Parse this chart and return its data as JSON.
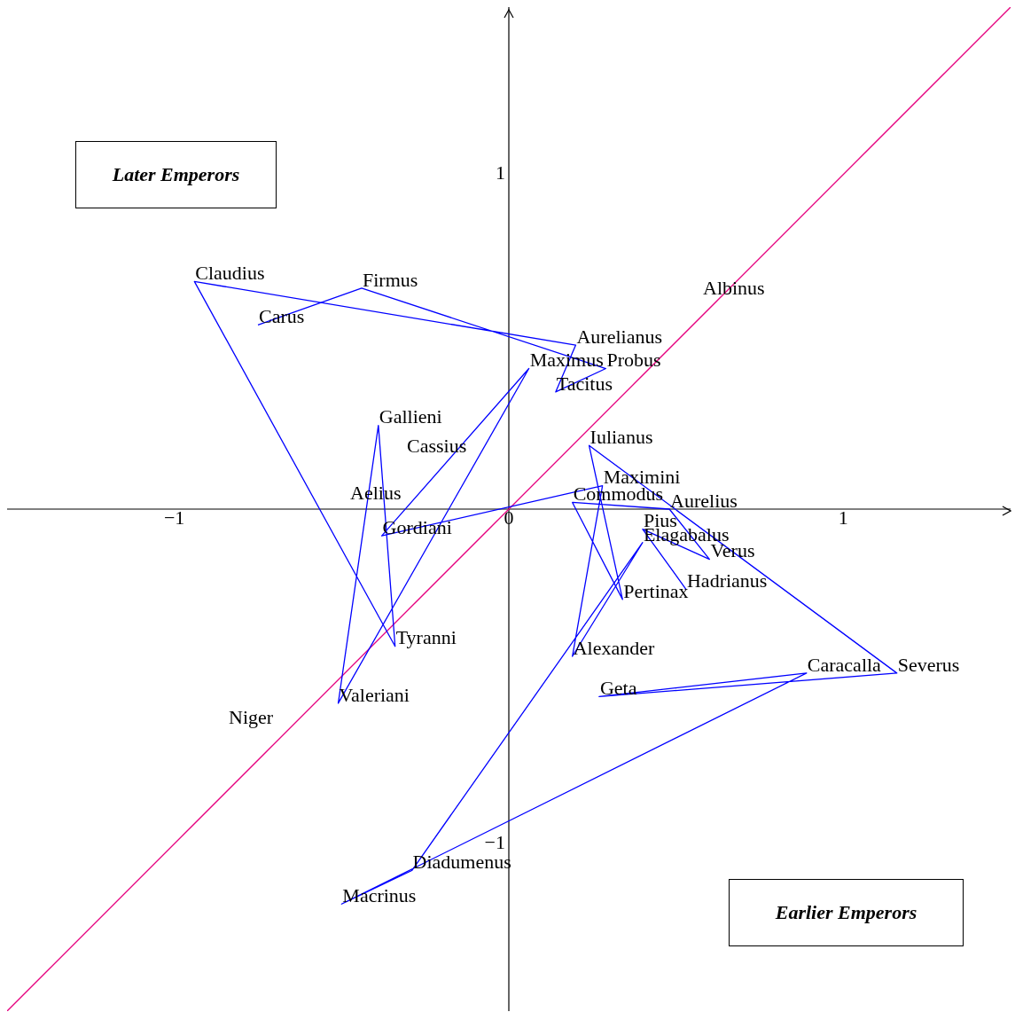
{
  "chart_data": {
    "type": "line",
    "xlim": [
      -1.5,
      1.5
    ],
    "ylim": [
      -1.5,
      1.5
    ],
    "xticks": [
      {
        "value": -1,
        "label": "−1"
      },
      0,
      1
    ],
    "yticks": [
      {
        "value": -1,
        "label": "−1"
      },
      1
    ],
    "grid": false,
    "legend": false,
    "marker": "none",
    "line_style": "solid",
    "series": [
      {
        "type": "line",
        "color": "#0000ff",
        "x": [
          -0.75,
          -0.44,
          0.29,
          0.14,
          0.2,
          -0.94,
          -0.34,
          -0.39,
          -0.51,
          0.06,
          -0.38,
          0.28,
          0.19,
          0.4,
          -0.29,
          -0.5,
          0.89,
          0.27,
          1.16,
          0.24,
          0.34,
          0.19,
          0.48,
          0.6,
          0.4,
          0.53
        ],
        "values": [
          0.55,
          0.66,
          0.42,
          0.35,
          0.49,
          0.68,
          -0.41,
          0.25,
          -0.58,
          0.42,
          -0.08,
          0.07,
          -0.44,
          -0.1,
          -1.08,
          -1.18,
          -0.49,
          -0.56,
          -0.49,
          0.19,
          -0.27,
          0.02,
          0.0,
          -0.15,
          -0.06,
          -0.24
        ]
      },
      {
        "color": "#e6007e",
        "x": [
          -1.5,
          1.5
        ],
        "values": [
          -1.5,
          1.5
        ]
      }
    ],
    "annotations": [
      {
        "text": "Carus",
        "x": -0.75,
        "y": 0.55
      },
      {
        "text": "Firmus",
        "x": -0.44,
        "y": 0.66
      },
      {
        "text": "Probus",
        "x": 0.29,
        "y": 0.42
      },
      {
        "text": "Tacitus",
        "x": 0.14,
        "y": 0.35
      },
      {
        "text": "Aurelianus",
        "x": 0.2,
        "y": 0.49
      },
      {
        "text": "Claudius",
        "x": -0.94,
        "y": 0.68
      },
      {
        "text": "Tyranni",
        "x": -0.34,
        "y": -0.41
      },
      {
        "text": "Gallieni",
        "x": -0.39,
        "y": 0.25
      },
      {
        "text": "Valeriani",
        "x": -0.51,
        "y": -0.58
      },
      {
        "text": "Maximus",
        "x": 0.06,
        "y": 0.42
      },
      {
        "text": "Gordiani",
        "x": -0.38,
        "y": -0.08
      },
      {
        "text": "Maximini",
        "x": 0.28,
        "y": 0.07
      },
      {
        "text": "Alexander",
        "x": 0.19,
        "y": -0.44
      },
      {
        "text": "Elagabalus",
        "x": 0.4,
        "y": -0.1
      },
      {
        "text": "Diadumenus",
        "x": -0.29,
        "y": -1.08
      },
      {
        "text": "Macrinus",
        "x": -0.5,
        "y": -1.18
      },
      {
        "text": "Caracalla",
        "x": 0.89,
        "y": -0.49
      },
      {
        "text": "Geta",
        "x": 0.27,
        "y": -0.56
      },
      {
        "text": "Severus",
        "x": 1.16,
        "y": -0.49
      },
      {
        "text": "Iulianus",
        "x": 0.24,
        "y": 0.19
      },
      {
        "text": "Pertinax",
        "x": 0.34,
        "y": -0.27
      },
      {
        "text": "Commodus",
        "x": 0.19,
        "y": 0.02
      },
      {
        "text": "Aurelius",
        "x": 0.48,
        "y": 0.0
      },
      {
        "text": "Verus",
        "x": 0.6,
        "y": -0.15
      },
      {
        "text": "Pius",
        "x": 0.4,
        "y": -0.06
      },
      {
        "text": "Hadrianus",
        "x": 0.53,
        "y": -0.24
      },
      "Albinus",
      "Niger",
      "Cassius",
      "Aelius",
      "Later Emperors",
      "Earlier Emperors"
    ]
  }
}
